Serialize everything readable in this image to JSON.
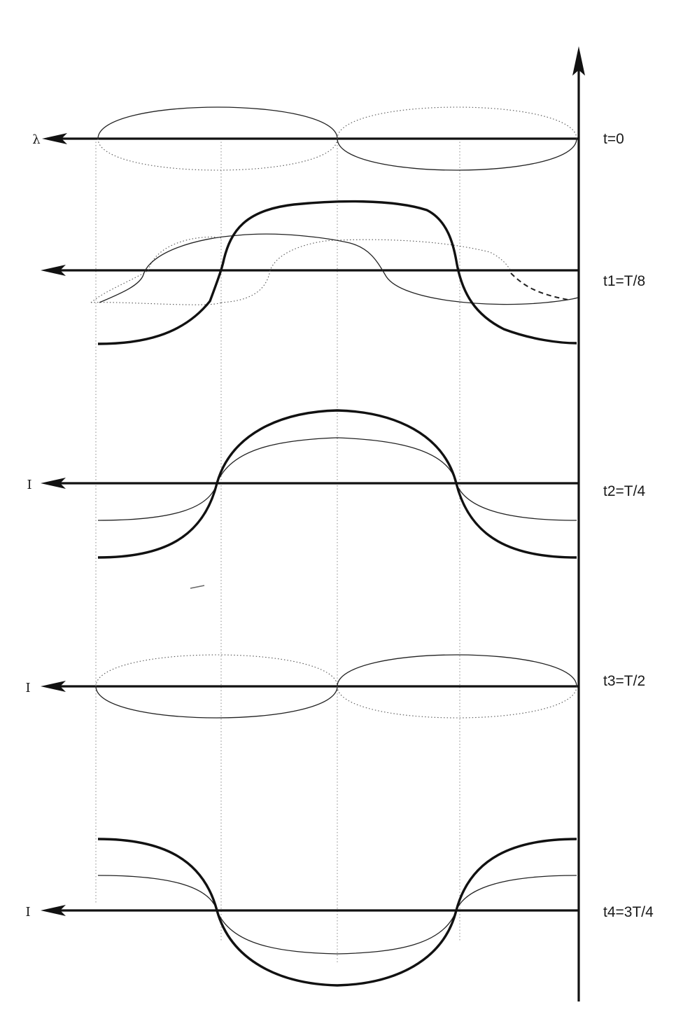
{
  "rows": [
    {
      "id": "t0",
      "time_label": "t=0",
      "axis_label": "λ"
    },
    {
      "id": "t1",
      "time_label": "t1=T/8",
      "axis_label": ""
    },
    {
      "id": "t2",
      "time_label": "t2=T/4",
      "axis_label": "I"
    },
    {
      "id": "t3",
      "time_label": "t3=T/2",
      "axis_label": "I"
    },
    {
      "id": "t4",
      "time_label": "t4=3T/4",
      "axis_label": "I"
    }
  ]
}
